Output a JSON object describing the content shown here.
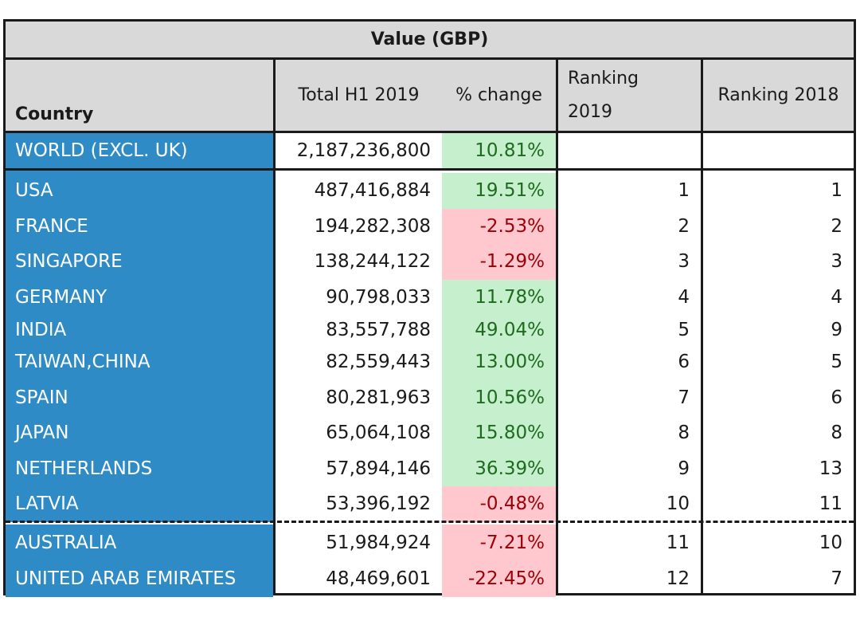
{
  "table": {
    "group_header": "Value (GBP)",
    "columns": {
      "country": "Country",
      "total": "Total H1 2019",
      "change": "% change",
      "rank2019": "Ranking\n2019",
      "rank2018": "Ranking 2018"
    },
    "world": {
      "country": "WORLD (EXCL. UK)",
      "total": "2,187,236,800",
      "change": "10.81%",
      "trend": "up"
    },
    "rows": [
      {
        "country": "USA",
        "total": "487,416,884",
        "change": "19.51%",
        "trend": "up",
        "rank2019": "1",
        "rank2018": "1"
      },
      {
        "country": "FRANCE",
        "total": "194,282,308",
        "change": "-2.53%",
        "trend": "down",
        "rank2019": "2",
        "rank2018": "2"
      },
      {
        "country": "SINGAPORE",
        "total": "138,244,122",
        "change": "-1.29%",
        "trend": "down",
        "rank2019": "3",
        "rank2018": "3"
      },
      {
        "country": "GERMANY",
        "total": "90,798,033",
        "change": "11.78%",
        "trend": "up",
        "rank2019": "4",
        "rank2018": "4"
      },
      {
        "country": "INDIA",
        "total": "83,557,788",
        "change": "49.04%",
        "trend": "up",
        "rank2019": "5",
        "rank2018": "9"
      },
      {
        "country": "TAIWAN,CHINA",
        "total": "82,559,443",
        "change": "13.00%",
        "trend": "up",
        "rank2019": "6",
        "rank2018": "5"
      },
      {
        "country": "SPAIN",
        "total": "80,281,963",
        "change": "10.56%",
        "trend": "up",
        "rank2019": "7",
        "rank2018": "6"
      },
      {
        "country": "JAPAN",
        "total": "65,064,108",
        "change": "15.80%",
        "trend": "up",
        "rank2019": "8",
        "rank2018": "8"
      },
      {
        "country": "NETHERLANDS",
        "total": "57,894,146",
        "change": "36.39%",
        "trend": "up",
        "rank2019": "9",
        "rank2018": "13"
      },
      {
        "country": "LATVIA",
        "total": "53,396,192",
        "change": "-0.48%",
        "trend": "down",
        "rank2019": "10",
        "rank2018": "11"
      },
      {
        "country": "AUSTRALIA",
        "total": "51,984,924",
        "change": "-7.21%",
        "trend": "down",
        "rank2019": "11",
        "rank2018": "10"
      },
      {
        "country": "UNITED ARAB EMIRATES",
        "total": "48,469,601",
        "change": "-22.45%",
        "trend": "down",
        "rank2019": "12",
        "rank2018": "7"
      }
    ]
  },
  "colors": {
    "country_bg": "#2e8bc6",
    "header_bg": "#d9d9d9",
    "positive_bg": "#c6efce",
    "positive_text": "#1e6b1e",
    "negative_bg": "#ffc7ce",
    "negative_text": "#9c0006"
  }
}
